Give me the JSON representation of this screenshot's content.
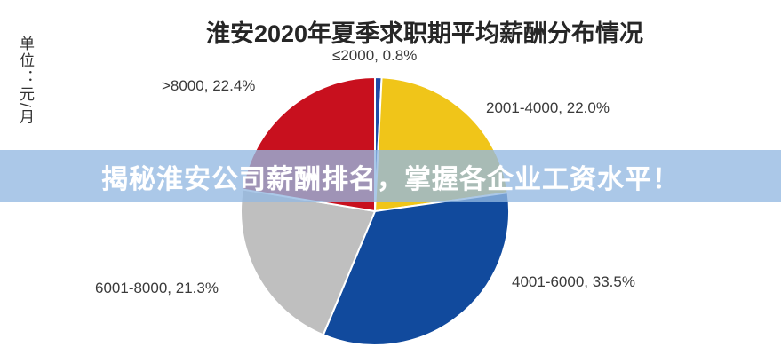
{
  "page": {
    "background": "#ffffff"
  },
  "title": "淮安2020年夏季求职期平均薪酬分布情况",
  "unit_label": "单位：元/月",
  "overlay_banner": {
    "text": "揭秘淮安公司薪酬排名，掌握各企业工资水平！",
    "background": "rgba(148,184,226,0.78)",
    "text_color": "#ffffff"
  },
  "chart_data": {
    "type": "pie",
    "title": "淮安2020年夏季求职期平均薪酬分布情况",
    "unit": "单位：元/月",
    "categories": [
      "≤2000",
      "2001-4000",
      "4001-6000",
      "6001-8000",
      ">8000"
    ],
    "values": [
      0.8,
      22.0,
      33.5,
      21.3,
      22.4
    ],
    "colors": [
      "#1F4BA8",
      "#F0C519",
      "#114A9D",
      "#BFBFBF",
      "#C8101E"
    ],
    "labels": [
      "≤2000, 0.8%",
      "2001-4000, 22.0%",
      "4001-6000, 33.5%",
      "6001-8000, 21.3%",
      ">8000, 22.4%"
    ],
    "start_angle_deg": 0,
    "direction": "clockwise",
    "legend": "none",
    "label_style": "outside direct labels",
    "slice_border_color": "#ffffff"
  }
}
